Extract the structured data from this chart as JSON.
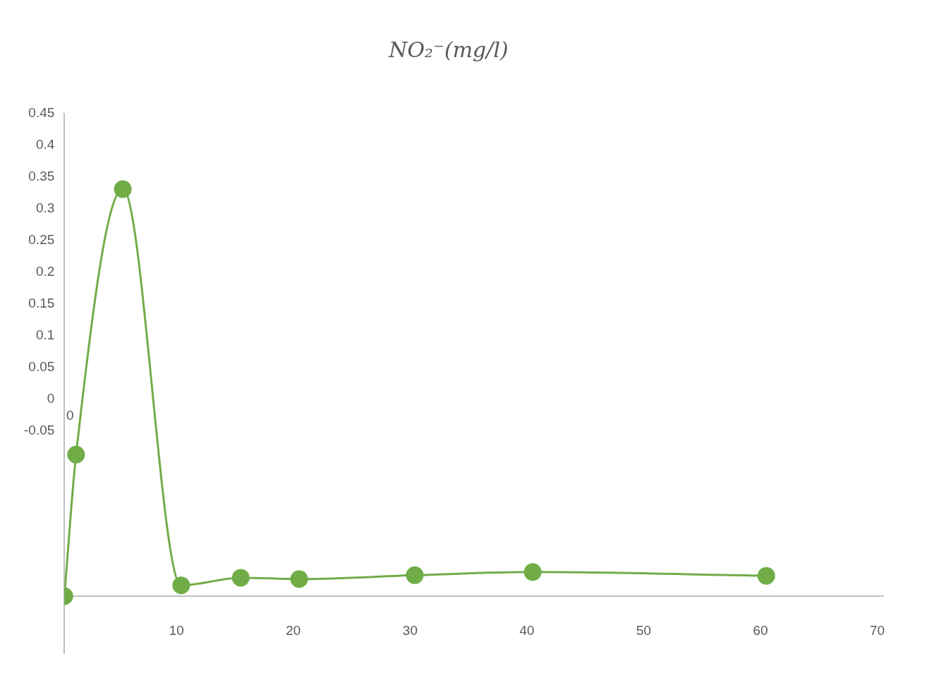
{
  "chart_data": {
    "type": "line",
    "title": "NO₂⁻(mg/l)",
    "x": [
      0.4,
      1.4,
      5.4,
      10.4,
      15.5,
      20.5,
      30.4,
      40.5,
      60.5
    ],
    "values": [
      -0.31,
      -0.087,
      0.331,
      -0.293,
      -0.281,
      -0.283,
      -0.277,
      -0.272,
      -0.278
    ],
    "color": "#70ad47",
    "marker": "circle",
    "grid": false,
    "xlim": [
      0.4,
      70.5
    ],
    "xticks": [
      10,
      20,
      30,
      40,
      50,
      60,
      70
    ],
    "ylim": [
      -0.4,
      0.45
    ],
    "yticks": [
      -0.05,
      0,
      0.05,
      0.1,
      0.15,
      0.2,
      0.25,
      0.3,
      0.35,
      0.4,
      0.45
    ],
    "annotations": [
      "0"
    ]
  }
}
